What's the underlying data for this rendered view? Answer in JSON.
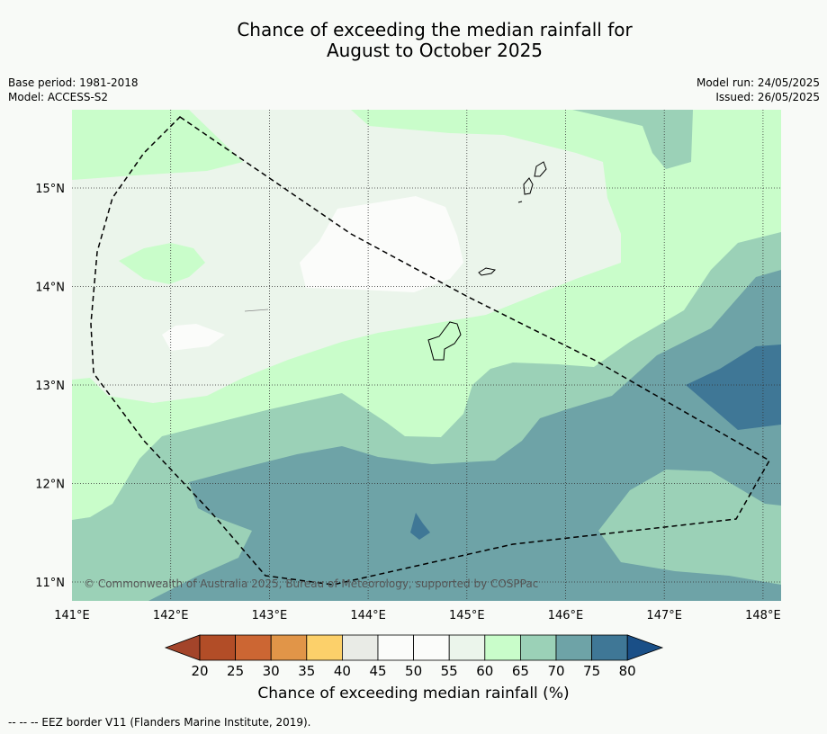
{
  "title_line1": "Chance of exceeding the median rainfall for",
  "title_line2": "August to October 2025",
  "base_period": "Base period: 1981-2018",
  "model": "Model: ACCESS-S2",
  "model_run": "Model run: 24/05/2025",
  "issued": "Issued: 26/05/2025",
  "copyright": "© Commonwealth of Australia 2025, Bureau of Meteorology, supported by COSPPac",
  "lon_ticks": [
    "141°E",
    "142°E",
    "143°E",
    "144°E",
    "145°E",
    "146°E",
    "147°E",
    "148°E"
  ],
  "lat_ticks": [
    "15°N",
    "14°N",
    "13°N",
    "12°N",
    "11°N"
  ],
  "colorbar": {
    "label": "Chance of exceeding median rainfall (%)",
    "ticks": [
      "20",
      "25",
      "30",
      "35",
      "40",
      "45",
      "50",
      "55",
      "60",
      "65",
      "70",
      "75",
      "80"
    ],
    "under_color": "#a3442a",
    "over_color": "#1a4f87",
    "colors": [
      "#b24d27",
      "#cc6633",
      "#e19548",
      "#fcd06a",
      "#e9ebe6",
      "#fbfcfa",
      "#fbfcfa",
      "#ebf5eb",
      "#c9fdca",
      "#9bd1b7",
      "#6ea3a7",
      "#3f7796"
    ]
  },
  "footnote": "--  --  -- EEZ border V11 (Flanders Marine Institute, 2019)."
}
